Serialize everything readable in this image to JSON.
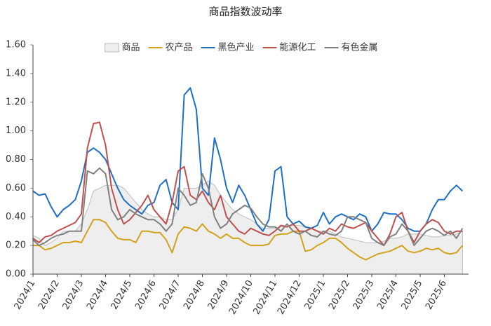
{
  "chart_data": {
    "type": "line",
    "title": "商品指数波动率",
    "categories": [
      "2024/1",
      null,
      null,
      null,
      "2024/2",
      null,
      null,
      null,
      "2024/3",
      null,
      null,
      null,
      "2024/4",
      null,
      null,
      null,
      "2024/5",
      null,
      null,
      null,
      "2024/6",
      null,
      null,
      null,
      "2024/7",
      null,
      null,
      null,
      "2024/8",
      null,
      null,
      null,
      "2024/9",
      null,
      null,
      null,
      "2024/10",
      null,
      null,
      null,
      "2024/11",
      null,
      null,
      null,
      "2024/12",
      null,
      null,
      null,
      "2025/1",
      null,
      null,
      null,
      "2025/2",
      null,
      null,
      null,
      "2025/3",
      null,
      null,
      null,
      "2025/4",
      null,
      null,
      null,
      "2025/5",
      null,
      null,
      null,
      "2025/6",
      null,
      null,
      null
    ],
    "ylim": [
      0,
      1.6
    ],
    "yticks": [
      {
        "value": 0,
        "label": "0.00"
      },
      {
        "value": 0.2,
        "label": "0.20"
      },
      {
        "value": 0.4,
        "label": "0.40"
      },
      {
        "value": 0.6,
        "label": "0.60"
      },
      {
        "value": 0.8,
        "label": "0.80"
      },
      {
        "value": 1,
        "label": "1.00"
      },
      {
        "value": 1.2,
        "label": "1.20"
      },
      {
        "value": 1.4,
        "label": "1.40"
      },
      {
        "value": 1.6,
        "label": "1.60"
      }
    ],
    "grid": false,
    "legend": "top",
    "series": [
      {
        "name": "商品",
        "style": "area",
        "color": "#bdbdbd",
        "fill": "#eeeeee",
        "values": [
          0.27,
          0.25,
          0.2,
          0.22,
          0.25,
          0.3,
          0.3,
          0.3,
          0.35,
          0.45,
          0.58,
          0.6,
          0.62,
          0.62,
          0.62,
          0.6,
          0.55,
          0.5,
          0.45,
          0.42,
          0.4,
          0.4,
          0.38,
          0.38,
          0.45,
          0.6,
          0.6,
          0.6,
          0.62,
          0.65,
          0.62,
          0.55,
          0.5,
          0.45,
          0.42,
          0.4,
          0.38,
          0.35,
          0.32,
          0.32,
          0.32,
          0.33,
          0.33,
          0.34,
          0.34,
          0.33,
          0.32,
          0.3,
          0.3,
          0.3,
          0.28,
          0.26,
          0.25,
          0.24,
          0.23,
          0.22,
          0.22,
          0.22,
          0.23,
          0.25,
          0.25,
          0.26,
          0.28,
          0.28,
          0.28,
          0.27,
          0.26,
          0.26,
          0.27,
          0.27,
          0.28,
          0.3
        ]
      },
      {
        "name": "农产品",
        "style": "line",
        "color": "#d2a21c",
        "values": [
          0.2,
          0.2,
          0.17,
          0.18,
          0.2,
          0.22,
          0.22,
          0.23,
          0.22,
          0.3,
          0.38,
          0.38,
          0.36,
          0.3,
          0.25,
          0.24,
          0.24,
          0.22,
          0.3,
          0.3,
          0.29,
          0.29,
          0.24,
          0.15,
          0.28,
          0.33,
          0.32,
          0.3,
          0.35,
          0.3,
          0.28,
          0.25,
          0.28,
          0.25,
          0.25,
          0.22,
          0.2,
          0.2,
          0.2,
          0.21,
          0.27,
          0.28,
          0.28,
          0.3,
          0.3,
          0.16,
          0.17,
          0.2,
          0.22,
          0.25,
          0.25,
          0.22,
          0.18,
          0.15,
          0.12,
          0.1,
          0.12,
          0.14,
          0.15,
          0.16,
          0.18,
          0.2,
          0.16,
          0.15,
          0.16,
          0.18,
          0.17,
          0.18,
          0.15,
          0.14,
          0.15,
          0.2
        ]
      },
      {
        "name": "黑色产业",
        "style": "line",
        "color": "#1f6fc5",
        "values": [
          0.58,
          0.55,
          0.56,
          0.47,
          0.4,
          0.45,
          0.48,
          0.52,
          0.65,
          0.85,
          0.88,
          0.85,
          0.8,
          0.7,
          0.6,
          0.52,
          0.48,
          0.45,
          0.42,
          0.48,
          0.5,
          0.62,
          0.66,
          0.5,
          0.45,
          1.25,
          1.3,
          1.15,
          0.6,
          0.55,
          0.95,
          0.8,
          0.6,
          0.5,
          0.62,
          0.55,
          0.45,
          0.35,
          0.3,
          0.38,
          0.72,
          0.75,
          0.4,
          0.35,
          0.37,
          0.33,
          0.32,
          0.34,
          0.43,
          0.35,
          0.4,
          0.42,
          0.4,
          0.38,
          0.42,
          0.4,
          0.3,
          0.35,
          0.43,
          0.42,
          0.42,
          0.38,
          0.32,
          0.3,
          0.3,
          0.35,
          0.45,
          0.52,
          0.52,
          0.58,
          0.62,
          0.58
        ]
      },
      {
        "name": "能源化工",
        "style": "line",
        "color": "#c0504d",
        "values": [
          0.25,
          0.22,
          0.26,
          0.27,
          0.3,
          0.32,
          0.34,
          0.36,
          0.42,
          0.88,
          1.05,
          1.06,
          0.9,
          0.6,
          0.45,
          0.35,
          0.38,
          0.43,
          0.48,
          0.55,
          0.45,
          0.4,
          0.35,
          0.5,
          0.72,
          0.75,
          0.55,
          0.52,
          0.58,
          0.5,
          0.45,
          0.55,
          0.4,
          0.35,
          0.3,
          0.28,
          0.32,
          0.3,
          0.28,
          0.27,
          0.3,
          0.34,
          0.33,
          0.35,
          0.3,
          0.3,
          0.32,
          0.3,
          0.28,
          0.32,
          0.3,
          0.35,
          0.33,
          0.32,
          0.34,
          0.36,
          0.3,
          0.25,
          0.2,
          0.28,
          0.4,
          0.43,
          0.3,
          0.22,
          0.3,
          0.35,
          0.38,
          0.36,
          0.3,
          0.28,
          0.3,
          0.3
        ]
      },
      {
        "name": "有色金属",
        "style": "line",
        "color": "#808080",
        "values": [
          0.24,
          0.2,
          0.22,
          0.25,
          0.27,
          0.28,
          0.3,
          0.3,
          0.3,
          0.72,
          0.7,
          0.74,
          0.7,
          0.45,
          0.38,
          0.4,
          0.45,
          0.42,
          0.4,
          0.38,
          0.38,
          0.35,
          0.3,
          0.35,
          0.6,
          0.55,
          0.48,
          0.5,
          0.7,
          0.6,
          0.4,
          0.32,
          0.35,
          0.42,
          0.45,
          0.48,
          0.46,
          0.4,
          0.35,
          0.33,
          0.33,
          0.3,
          0.35,
          0.3,
          0.28,
          0.3,
          0.27,
          0.26,
          0.3,
          0.28,
          0.27,
          0.3,
          0.4,
          0.4,
          0.38,
          0.36,
          0.25,
          0.22,
          0.2,
          0.26,
          0.28,
          0.35,
          0.3,
          0.2,
          0.25,
          0.3,
          0.32,
          0.3,
          0.27,
          0.3,
          0.25,
          0.32
        ]
      }
    ]
  }
}
